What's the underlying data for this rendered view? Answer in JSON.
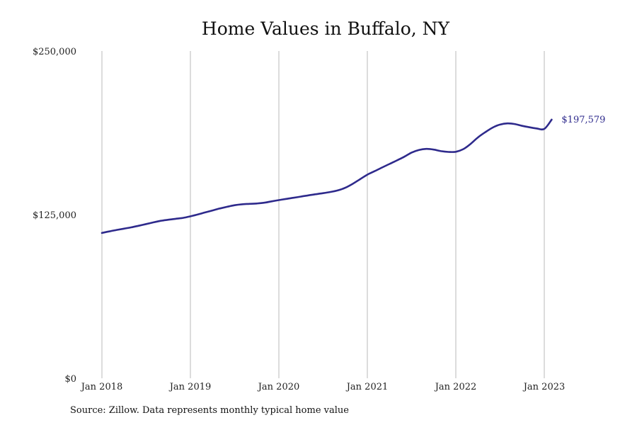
{
  "colors": {
    "line": "#2e2a8c",
    "grid": "#b9b9b9",
    "text": "#111111"
  },
  "chart_data": {
    "type": "line",
    "title": "Home Values in Buffalo, NY",
    "xlabel": "",
    "ylabel": "",
    "y_ticks": [
      {
        "value": 250000,
        "label": "$250,000"
      },
      {
        "value": 125000,
        "label": "$125,000"
      },
      {
        "value": 0,
        "label": "$0"
      }
    ],
    "x_ticks": [
      {
        "value": "2018-01",
        "label": "Jan 2018"
      },
      {
        "value": "2019-01",
        "label": "Jan 2019"
      },
      {
        "value": "2020-01",
        "label": "Jan 2020"
      },
      {
        "value": "2021-01",
        "label": "Jan 2021"
      },
      {
        "value": "2022-01",
        "label": "Jan 2022"
      },
      {
        "value": "2023-01",
        "label": "Jan 2023"
      }
    ],
    "xlim": [
      "2018-01",
      "2023-02"
    ],
    "ylim": [
      0,
      250000
    ],
    "grid": "vertical",
    "series": [
      {
        "x": [
          "2018-01",
          "2018-02",
          "2018-03",
          "2018-04",
          "2018-05",
          "2018-06",
          "2018-07",
          "2018-08",
          "2018-09",
          "2018-10",
          "2018-11",
          "2018-12",
          "2019-01",
          "2019-02",
          "2019-03",
          "2019-04",
          "2019-05",
          "2019-06",
          "2019-07",
          "2019-08",
          "2019-09",
          "2019-10",
          "2019-11",
          "2019-12",
          "2020-01",
          "2020-02",
          "2020-03",
          "2020-04",
          "2020-05",
          "2020-06",
          "2020-07",
          "2020-08",
          "2020-09",
          "2020-10",
          "2020-11",
          "2020-12",
          "2021-01",
          "2021-02",
          "2021-03",
          "2021-04",
          "2021-05",
          "2021-06",
          "2021-07",
          "2021-08",
          "2021-09",
          "2021-10",
          "2021-11",
          "2021-12",
          "2022-01",
          "2022-02",
          "2022-03",
          "2022-04",
          "2022-05",
          "2022-06",
          "2022-07",
          "2022-08",
          "2022-09",
          "2022-10",
          "2022-11",
          "2022-12",
          "2023-01",
          "2023-02"
        ],
        "values": [
          111000,
          112200,
          113300,
          114300,
          115300,
          116500,
          117800,
          119100,
          120300,
          121100,
          121800,
          122500,
          123700,
          125100,
          126700,
          128200,
          129700,
          131000,
          132200,
          132900,
          133200,
          133500,
          134100,
          135100,
          136100,
          137000,
          137900,
          138800,
          139700,
          140600,
          141400,
          142300,
          143500,
          145500,
          148500,
          152000,
          155500,
          158200,
          161000,
          163700,
          166400,
          169200,
          172400,
          174400,
          175200,
          174700,
          173500,
          172900,
          173000,
          175000,
          179000,
          184000,
          188000,
          191500,
          193800,
          194700,
          194200,
          192800,
          191700,
          190800,
          190500,
          197579
        ]
      }
    ],
    "annotations": [
      {
        "x": "2023-02",
        "value": 197579,
        "label": "$197,579"
      }
    ]
  },
  "source_note": "Source: Zillow. Data represents monthly typical home value"
}
